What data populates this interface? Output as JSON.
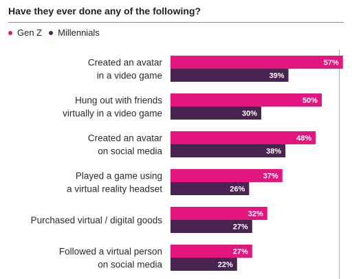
{
  "chart_data": {
    "type": "bar",
    "orientation": "horizontal",
    "title": "Have they ever done any of the following?",
    "categories": [
      [
        "Created an avatar",
        "in a video game"
      ],
      [
        "Hung out with friends",
        "virtually in a video game"
      ],
      [
        "Created an avatar",
        "on social media"
      ],
      [
        "Played a game using",
        "a virtual reality headset"
      ],
      [
        "Purchased virtual / digital goods"
      ],
      [
        "Followed a virtual person",
        "on social media"
      ]
    ],
    "series": [
      {
        "name": "Gen Z",
        "color": "#e3157f",
        "values": [
          57,
          50,
          48,
          37,
          32,
          27
        ],
        "labels": [
          "57%",
          "50%",
          "48%",
          "37%",
          "32%",
          "27%"
        ]
      },
      {
        "name": "Millennials",
        "color": "#4a2450",
        "values": [
          39,
          30,
          38,
          26,
          27,
          22
        ],
        "labels": [
          "39%",
          "30%",
          "38%",
          "26%",
          "27%",
          "22%"
        ]
      }
    ],
    "xlim": [
      0,
      60
    ],
    "legend": "top-left",
    "grid": false
  }
}
